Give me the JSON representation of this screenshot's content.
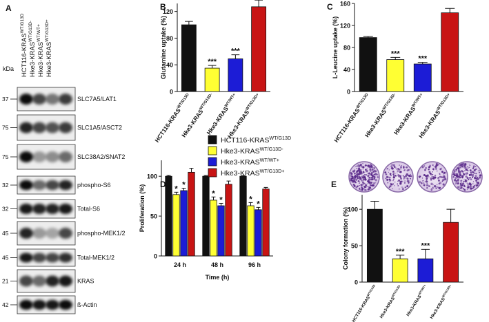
{
  "blot": {
    "panel": "A",
    "kda_label": "kDa",
    "lanes": [
      {
        "base": "HCT116-KRAS",
        "sup": "WT/G13D"
      },
      {
        "base": "Hke3-KRAS",
        "sup": "WT/G13D-"
      },
      {
        "base": "Hke3-KRAS",
        "sup": "WT/WT+"
      },
      {
        "base": "Hke3-KRAS",
        "sup": "WT/G13D+"
      }
    ],
    "rows": [
      {
        "marker": 37,
        "protein": "SLC7A5/LAT1"
      },
      {
        "marker": 75,
        "protein": "SLC1A5/ASCT2"
      },
      {
        "marker": 75,
        "protein": "SLC38A2/SNAT2"
      },
      {
        "marker": 32,
        "protein": "phospho-S6"
      },
      {
        "marker": 32,
        "protein": "Total-S6"
      },
      {
        "marker": 45,
        "protein": "phospho-MEK1/2"
      },
      {
        "marker": 45,
        "protein": "Total-MEK1/2"
      },
      {
        "marker": 21,
        "protein": "KRAS"
      },
      {
        "marker": 42,
        "protein": "ß-Actin"
      }
    ]
  },
  "chart_data": [
    {
      "type": "bar",
      "panel": "B",
      "ylabel": "Glutamine uptake (%)",
      "categories": [
        "HCT116-KRAS",
        "Hke3-KRAS",
        "Hke3-KRAS",
        "Hke3-KRAS"
      ],
      "category_superscripts": [
        "WT/G13D",
        "WT/G13D-",
        "WT/WT+",
        "WT/G13D+"
      ],
      "values": [
        100,
        35,
        49,
        127
      ],
      "errors": [
        5,
        4,
        6,
        10
      ],
      "value_annotations": [
        null,
        "***",
        "***",
        null
      ],
      "colors": [
        "#111111",
        "#ffff33",
        "#1c1cd6",
        "#c81414"
      ],
      "ylim": [
        0,
        132
      ],
      "yticks": [
        0,
        40,
        80,
        120
      ]
    },
    {
      "type": "bar",
      "panel": "C",
      "ylabel": "L-Leucine uptake (%)",
      "categories": [
        "HCT116-KRAS",
        "Hke3-KRAS",
        "Hke3-KRAS",
        "Hke3-KRAS"
      ],
      "category_superscripts": [
        "WT/G13D",
        "WT/G13D-",
        "WT/WT+",
        "WT/G13D+"
      ],
      "values": [
        98,
        58,
        50,
        143
      ],
      "errors": [
        2,
        4,
        3,
        8
      ],
      "value_annotations": [
        null,
        "***",
        "***",
        null
      ],
      "colors": [
        "#111111",
        "#ffff33",
        "#1c1cd6",
        "#c81414"
      ],
      "ylim": [
        0,
        160
      ],
      "yticks": [
        0,
        40,
        80,
        120,
        160
      ]
    },
    {
      "type": "grouped_bar",
      "panel": "D",
      "ylabel": "Proliferation (%)",
      "xlabel": "Time (h)",
      "categories": [
        "24 h",
        "48 h",
        "96 h"
      ],
      "series": [
        {
          "name": "HCT116-KRAS",
          "name_sup": "WT/G13D",
          "color": "#111111",
          "values": [
            100,
            100,
            100
          ],
          "errors": [
            1,
            1,
            1
          ],
          "value_annotations": [
            null,
            null,
            null
          ]
        },
        {
          "name": "Hke3-KRAS",
          "name_sup": "WT/G13D-",
          "color": "#ffff33",
          "values": [
            77,
            70,
            63
          ],
          "errors": [
            3,
            4,
            4
          ],
          "value_annotations": [
            "*",
            "*",
            "*"
          ]
        },
        {
          "name": "Hke3-KRAS",
          "name_sup": "WT/WT+",
          "color": "#1c1cd6",
          "values": [
            82,
            63,
            58
          ],
          "errors": [
            3,
            3,
            3
          ],
          "value_annotations": [
            "*",
            "*",
            "*"
          ]
        },
        {
          "name": "Hke3-KRAS",
          "name_sup": "WT/G13D+",
          "color": "#c81414",
          "values": [
            105,
            90,
            84
          ],
          "errors": [
            5,
            4,
            2
          ],
          "value_annotations": [
            null,
            null,
            null
          ]
        }
      ],
      "ylim": [
        0,
        120
      ],
      "yticks": [
        0,
        50,
        100
      ]
    },
    {
      "type": "bar",
      "panel": "E",
      "ylabel": "Colony formation (%)",
      "categories": [
        "HCT116-KRAS",
        "Hke3-KRAS",
        "Hke3-KRAS",
        "Hke3-KRAS"
      ],
      "category_superscripts": [
        "WT/G13D",
        "WT/G13D-",
        "WT/WT+",
        "WT/G13D+"
      ],
      "values": [
        100,
        32,
        32,
        82
      ],
      "errors": [
        11,
        5,
        13,
        18
      ],
      "value_annotations": [
        null,
        "***",
        "***",
        null
      ],
      "colors": [
        "#111111",
        "#ffff33",
        "#1c1cd6",
        "#c81414"
      ],
      "ylim": [
        0,
        120
      ],
      "yticks": [
        0,
        50,
        100
      ]
    }
  ]
}
